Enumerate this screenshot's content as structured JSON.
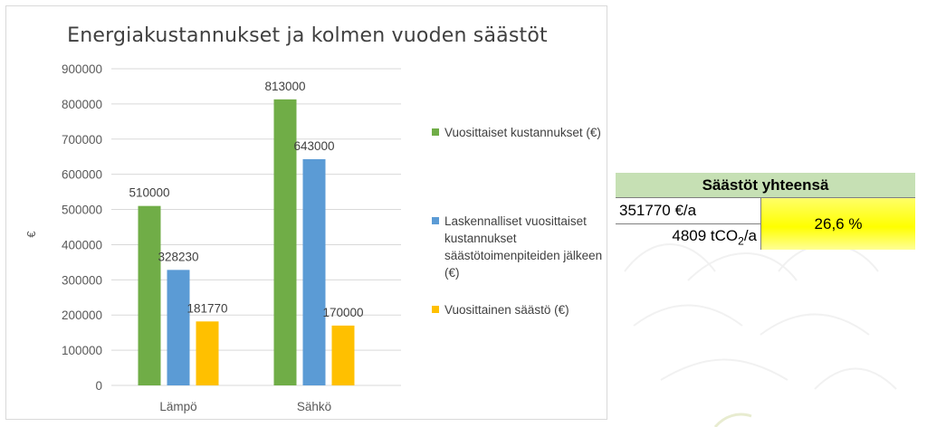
{
  "chart_data": {
    "type": "bar",
    "title": "Energiakustannukset ja kolmen vuoden säästöt",
    "ylabel": "€",
    "xlabel": "",
    "ylim": [
      0,
      900000
    ],
    "yticks": [
      "900000",
      "800000",
      "700000",
      "600000",
      "500000",
      "400000",
      "300000",
      "200000",
      "100000",
      "0"
    ],
    "grid": true,
    "legend_position": "right",
    "categories": [
      "Lämpö",
      "Sähkö"
    ],
    "series": [
      {
        "name": "Vuosittaiset kustannukset (€)",
        "color": "#70ad47",
        "values": [
          510000,
          813000
        ],
        "labels": [
          "510000",
          "813000"
        ]
      },
      {
        "name": "Laskennalliset vuosittaiset kustannukset säästötoimenpiteiden jälkeen (€)",
        "color": "#5b9bd5",
        "values": [
          328230,
          643000
        ],
        "labels": [
          "328230",
          "643000"
        ]
      },
      {
        "name": "Vuosittainen säästö (€)",
        "color": "#ffc000",
        "values": [
          181770,
          170000
        ],
        "labels": [
          "181770",
          "170000"
        ]
      }
    ]
  },
  "summary": {
    "header": "Säästöt yhteensä",
    "euro_savings": "351770 €/a",
    "co2_savings_prefix": "4809 tCO",
    "co2_savings_sub": "2",
    "co2_savings_suffix": "/a",
    "percent": "26,6 %",
    "header_color": "#c6e0b4",
    "highlight_color": "#ffff00"
  }
}
